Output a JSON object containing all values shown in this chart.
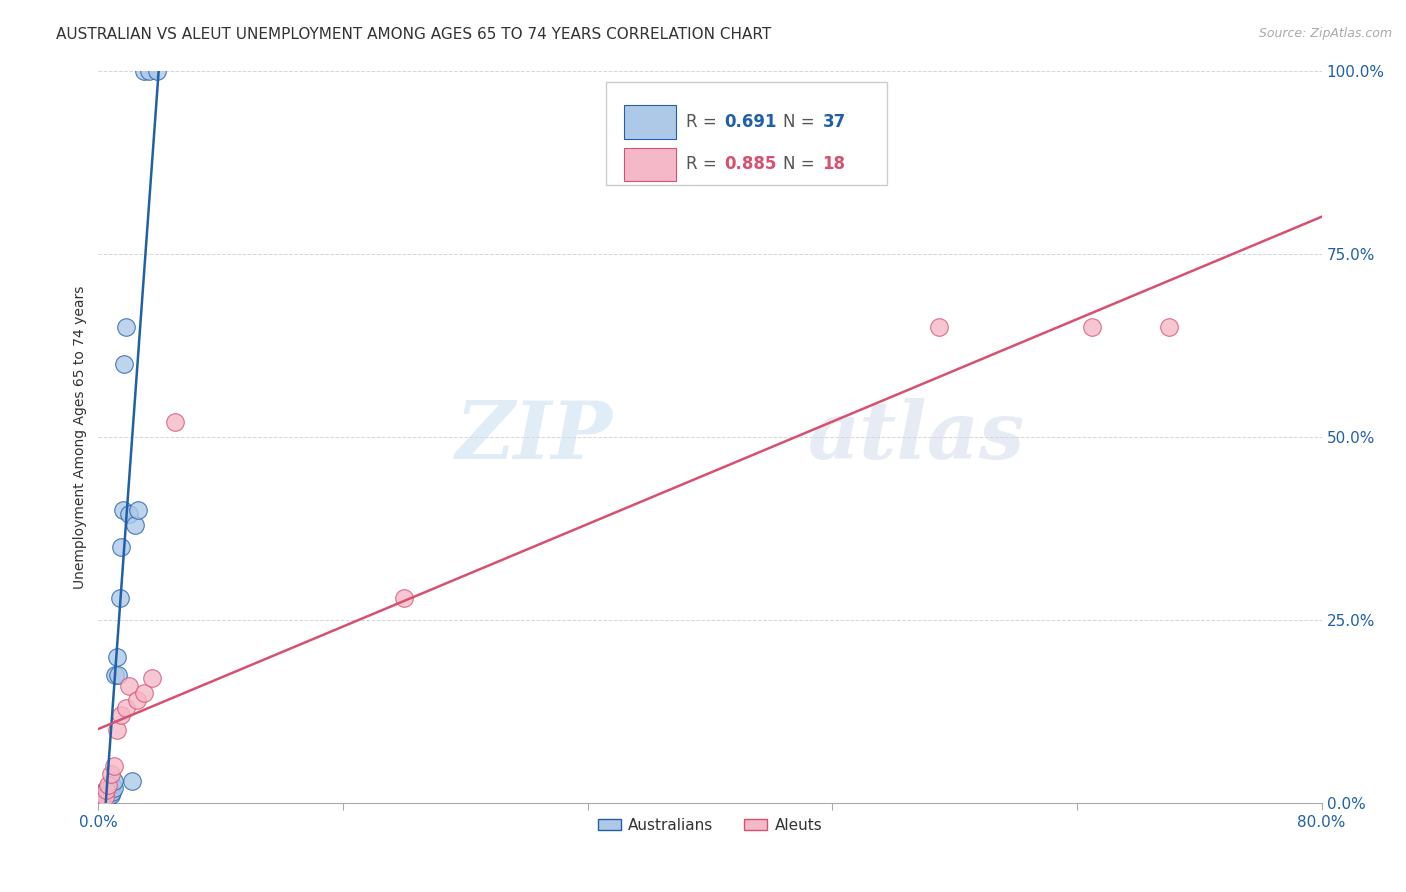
{
  "title": "AUSTRALIAN VS ALEUT UNEMPLOYMENT AMONG AGES 65 TO 74 YEARS CORRELATION CHART",
  "source": "Source: ZipAtlas.com",
  "ylabel": "Unemployment Among Ages 65 to 74 years",
  "xmax": 0.8,
  "ymax": 1.0,
  "yticks": [
    0.0,
    0.25,
    0.5,
    0.75,
    1.0
  ],
  "ytick_labels": [
    "0.0%",
    "25.0%",
    "50.0%",
    "75.0%",
    "100.0%"
  ],
  "australians_x": [
    0.001,
    0.002,
    0.002,
    0.003,
    0.003,
    0.003,
    0.004,
    0.004,
    0.004,
    0.005,
    0.005,
    0.005,
    0.006,
    0.006,
    0.007,
    0.007,
    0.008,
    0.008,
    0.009,
    0.009,
    0.01,
    0.01,
    0.011,
    0.012,
    0.013,
    0.014,
    0.015,
    0.016,
    0.017,
    0.018,
    0.02,
    0.022,
    0.024,
    0.026,
    0.03,
    0.033,
    0.038
  ],
  "australians_y": [
    0.005,
    0.005,
    0.008,
    0.005,
    0.01,
    0.015,
    0.005,
    0.008,
    0.012,
    0.005,
    0.01,
    0.018,
    0.008,
    0.01,
    0.01,
    0.015,
    0.01,
    0.02,
    0.015,
    0.025,
    0.02,
    0.03,
    0.175,
    0.2,
    0.175,
    0.28,
    0.35,
    0.4,
    0.6,
    0.65,
    0.395,
    0.03,
    0.38,
    0.4,
    1.0,
    1.0,
    1.0
  ],
  "aleuts_x": [
    0.002,
    0.004,
    0.005,
    0.006,
    0.008,
    0.01,
    0.012,
    0.015,
    0.018,
    0.02,
    0.025,
    0.03,
    0.035,
    0.05,
    0.2,
    0.55,
    0.65,
    0.7
  ],
  "aleuts_y": [
    0.005,
    0.008,
    0.018,
    0.025,
    0.04,
    0.05,
    0.1,
    0.12,
    0.13,
    0.16,
    0.14,
    0.15,
    0.17,
    0.52,
    0.28,
    0.65,
    0.65,
    0.65
  ],
  "australian_color": "#aec8e8",
  "aleut_color": "#f5b8c8",
  "australian_line_color": "#2060a8",
  "aleut_line_color": "#d85070",
  "R_australian": "0.691",
  "N_australian": "37",
  "R_aleut": "0.885",
  "N_aleut": "18",
  "background_color": "#ffffff",
  "grid_color": "#cccccc",
  "watermark_zip": "ZIP",
  "watermark_atlas": "atlas",
  "title_fontsize": 11,
  "axis_label_fontsize": 10,
  "tick_fontsize": 11,
  "source_fontsize": 9
}
